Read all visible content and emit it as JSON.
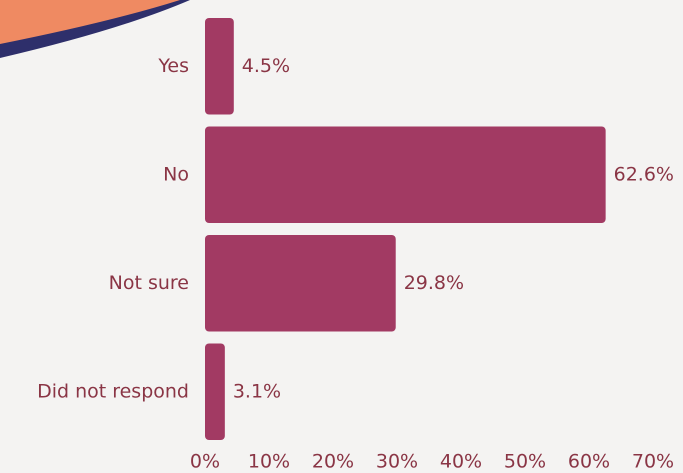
{
  "chart_data": {
    "type": "bar",
    "orientation": "horizontal",
    "categories": [
      "Yes",
      "No",
      "Not sure",
      "Did not respond"
    ],
    "values": [
      4.5,
      62.6,
      29.8,
      3.1
    ],
    "value_labels": [
      "4.5%",
      "62.6%",
      "29.8%",
      "3.1%"
    ],
    "color": "#a23a63",
    "xlim": [
      0,
      70
    ],
    "xticks": [
      {
        "value": 0,
        "label": "0%"
      },
      {
        "value": 10,
        "label": "10%"
      },
      {
        "value": 20,
        "label": "20%"
      },
      {
        "value": 30,
        "label": "30%"
      },
      {
        "value": 40,
        "label": "40%"
      },
      {
        "value": 50,
        "label": "50%"
      },
      {
        "value": 60,
        "label": "60%"
      },
      {
        "value": 70,
        "label": "70%"
      }
    ],
    "grid": false
  }
}
